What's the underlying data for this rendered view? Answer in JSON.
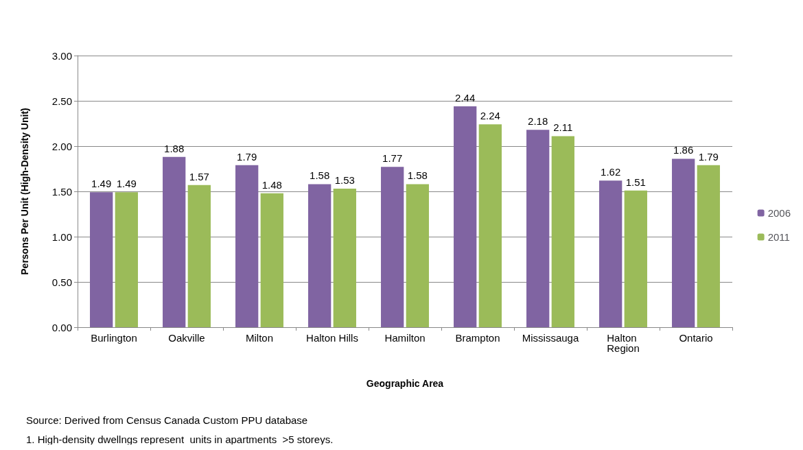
{
  "chart_data": {
    "type": "bar",
    "xlabel": "Geographic Area",
    "ylabel": "Persons Per Unit (High-Density Unit)",
    "categories": [
      "Burlington",
      "Oakville",
      "Milton",
      "Halton Hills",
      "Hamilton",
      "Brampton",
      "Mississauga",
      "Halton Region",
      "Ontario"
    ],
    "series": [
      {
        "name": "2006",
        "color": "#8064a2",
        "values": [
          1.49,
          1.88,
          1.79,
          1.58,
          1.77,
          2.44,
          2.18,
          1.62,
          1.86
        ]
      },
      {
        "name": "2011",
        "color": "#9bbb59",
        "values": [
          1.49,
          1.57,
          1.48,
          1.53,
          1.58,
          2.24,
          2.11,
          1.51,
          1.79
        ]
      }
    ],
    "ylim": [
      0,
      3
    ],
    "yticks": [
      "0.00",
      "0.50",
      "1.00",
      "1.50",
      "2.00",
      "2.50",
      "3.00"
    ],
    "grid": "y",
    "legend": "right",
    "data_labels": true,
    "annotations": [
      "Source: Derived from Census Canada Custom PPU database",
      "1. High-density dwellngs represent  units in apartments  >5 storeys."
    ]
  }
}
